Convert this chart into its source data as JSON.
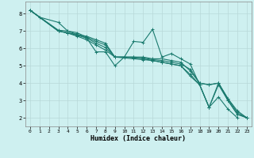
{
  "xlabel": "Humidex (Indice chaleur)",
  "bg_color": "#cef0f0",
  "line_color": "#1a7a6e",
  "grid_color": "#b8d8d8",
  "xlim": [
    -0.5,
    23.5
  ],
  "ylim": [
    1.5,
    8.7
  ],
  "xticks": [
    0,
    1,
    2,
    3,
    4,
    5,
    6,
    7,
    8,
    9,
    10,
    11,
    12,
    13,
    14,
    15,
    16,
    17,
    18,
    19,
    20,
    21,
    22,
    23
  ],
  "yticks": [
    2,
    3,
    4,
    5,
    6,
    7,
    8
  ],
  "lines": [
    [
      [
        0,
        8.2
      ],
      [
        1,
        7.8
      ],
      [
        3,
        7.5
      ],
      [
        4,
        7.0
      ],
      [
        5,
        6.8
      ],
      [
        6,
        6.7
      ],
      [
        7,
        6.5
      ],
      [
        8,
        6.3
      ],
      [
        9,
        5.5
      ],
      [
        10,
        5.5
      ],
      [
        11,
        5.5
      ],
      [
        12,
        5.5
      ],
      [
        13,
        5.4
      ],
      [
        14,
        5.4
      ],
      [
        15,
        5.3
      ],
      [
        16,
        5.2
      ],
      [
        17,
        4.7
      ],
      [
        18,
        4.0
      ],
      [
        19,
        3.9
      ],
      [
        20,
        4.0
      ],
      [
        21,
        3.1
      ],
      [
        22,
        2.4
      ],
      [
        23,
        2.0
      ]
    ],
    [
      [
        0,
        8.2
      ],
      [
        3,
        7.0
      ],
      [
        4,
        6.9
      ],
      [
        5,
        6.8
      ],
      [
        6,
        6.6
      ],
      [
        7,
        5.8
      ],
      [
        8,
        5.8
      ],
      [
        9,
        5.0
      ],
      [
        10,
        5.5
      ],
      [
        11,
        6.4
      ],
      [
        12,
        6.35
      ],
      [
        13,
        7.1
      ],
      [
        14,
        5.5
      ],
      [
        15,
        5.7
      ],
      [
        16,
        5.4
      ],
      [
        17,
        5.1
      ],
      [
        18,
        3.9
      ],
      [
        19,
        2.6
      ],
      [
        20,
        3.2
      ],
      [
        21,
        2.5
      ],
      [
        22,
        2.0
      ]
    ],
    [
      [
        0,
        8.2
      ],
      [
        3,
        7.05
      ],
      [
        4,
        7.0
      ],
      [
        5,
        6.9
      ],
      [
        6,
        6.65
      ],
      [
        7,
        6.4
      ],
      [
        8,
        6.2
      ],
      [
        9,
        5.5
      ],
      [
        10,
        5.5
      ],
      [
        11,
        5.5
      ],
      [
        12,
        5.45
      ],
      [
        13,
        5.35
      ],
      [
        14,
        5.3
      ],
      [
        15,
        5.2
      ],
      [
        16,
        5.1
      ],
      [
        17,
        4.8
      ],
      [
        18,
        4.0
      ],
      [
        19,
        3.9
      ],
      [
        20,
        4.0
      ],
      [
        21,
        3.1
      ],
      [
        22,
        2.3
      ],
      [
        23,
        2.0
      ]
    ],
    [
      [
        0,
        8.2
      ],
      [
        3,
        7.0
      ],
      [
        4,
        6.9
      ],
      [
        5,
        6.75
      ],
      [
        6,
        6.6
      ],
      [
        7,
        6.3
      ],
      [
        8,
        6.05
      ],
      [
        9,
        5.5
      ],
      [
        10,
        5.5
      ],
      [
        11,
        5.45
      ],
      [
        12,
        5.4
      ],
      [
        13,
        5.3
      ],
      [
        14,
        5.2
      ],
      [
        15,
        5.1
      ],
      [
        16,
        5.0
      ],
      [
        17,
        4.5
      ],
      [
        18,
        3.9
      ],
      [
        19,
        2.6
      ],
      [
        20,
        4.0
      ],
      [
        21,
        3.0
      ],
      [
        22,
        2.2
      ],
      [
        23,
        2.0
      ]
    ],
    [
      [
        0,
        8.2
      ],
      [
        3,
        7.0
      ],
      [
        4,
        6.88
      ],
      [
        5,
        6.7
      ],
      [
        6,
        6.5
      ],
      [
        7,
        6.2
      ],
      [
        8,
        5.9
      ],
      [
        9,
        5.5
      ],
      [
        10,
        5.45
      ],
      [
        11,
        5.4
      ],
      [
        12,
        5.35
      ],
      [
        13,
        5.3
      ],
      [
        14,
        5.2
      ],
      [
        15,
        5.1
      ],
      [
        16,
        5.0
      ],
      [
        17,
        4.4
      ],
      [
        18,
        3.9
      ],
      [
        19,
        2.6
      ],
      [
        20,
        3.9
      ],
      [
        21,
        3.0
      ],
      [
        22,
        2.2
      ],
      [
        23,
        2.0
      ]
    ]
  ],
  "marker": "+",
  "markersize": 3,
  "linewidth": 0.8
}
